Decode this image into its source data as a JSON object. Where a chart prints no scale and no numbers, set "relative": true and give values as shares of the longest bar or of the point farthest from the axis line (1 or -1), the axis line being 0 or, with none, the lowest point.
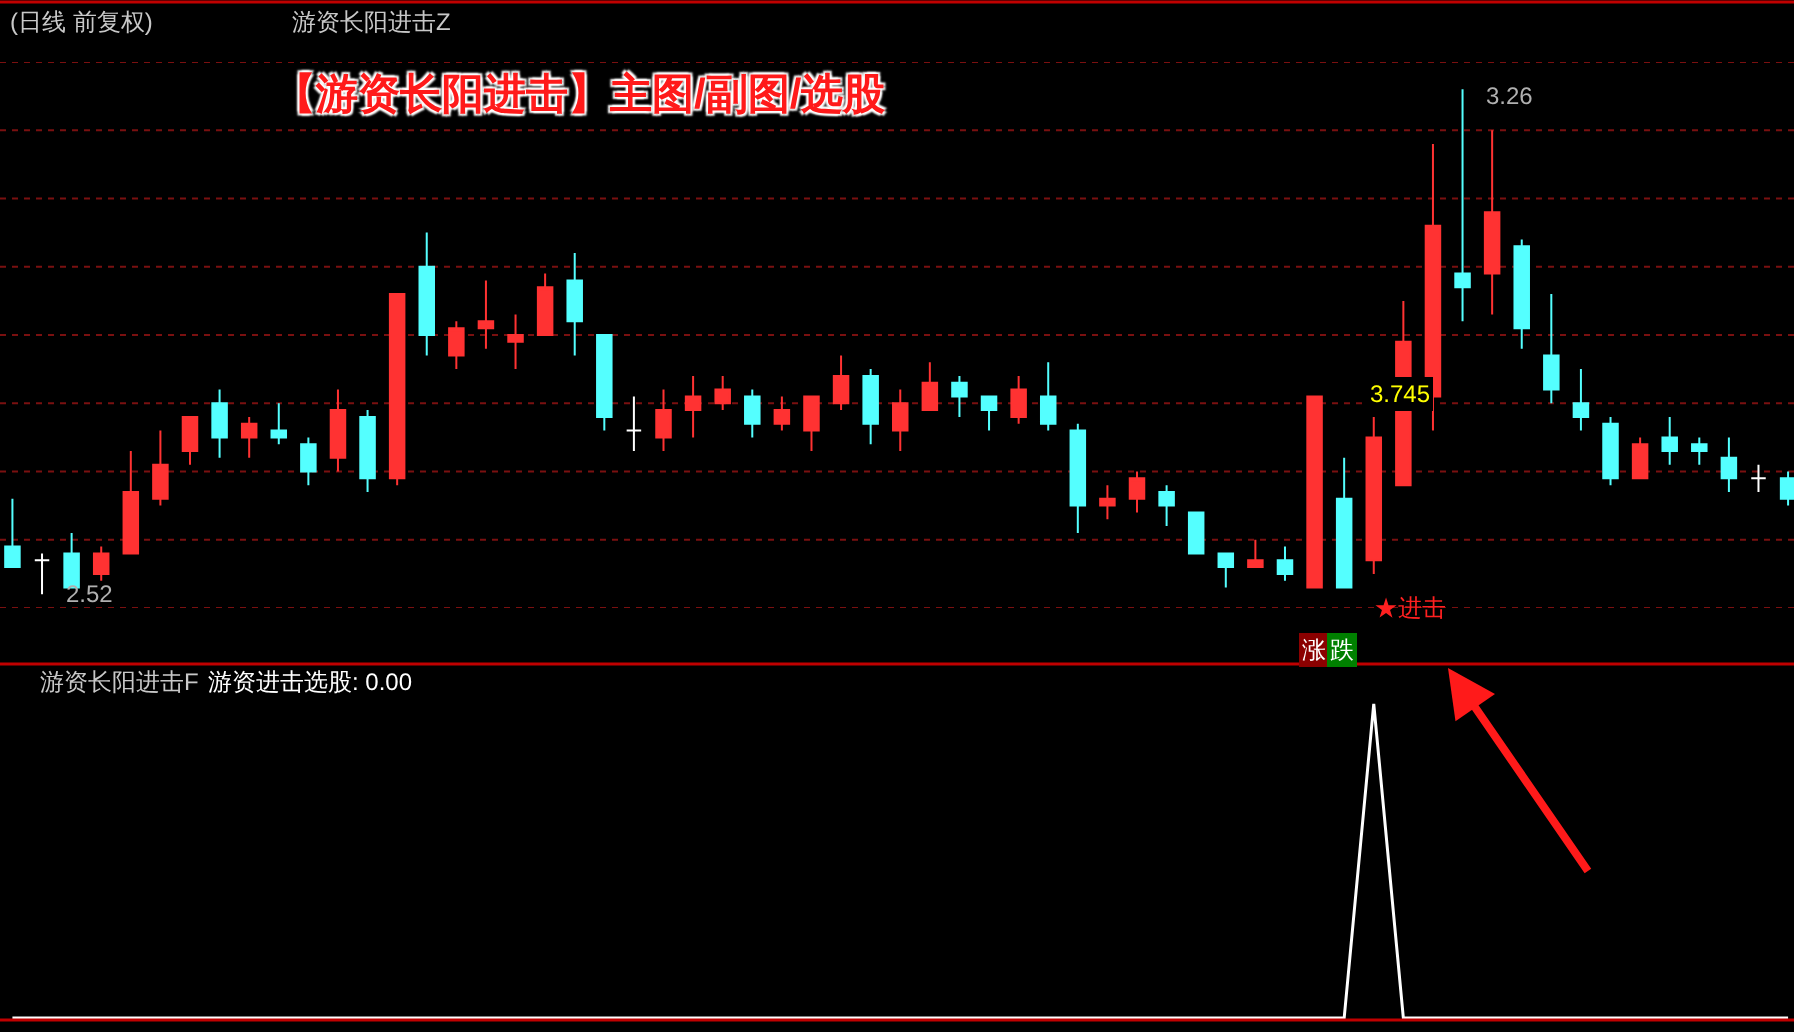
{
  "chart_data": [
    {
      "type": "candlestick",
      "title": "【游资长阳进击】主图/副图/选股",
      "annotations": [
        "(日线 前复权)",
        "游资长阳进击Z",
        "2.52",
        "3.26",
        "3.745",
        "★进击",
        "涨",
        "跌"
      ],
      "categories": [
        null,
        null,
        null,
        null,
        null,
        null,
        null,
        null,
        null,
        null,
        null,
        null,
        null,
        null,
        null,
        null,
        null,
        null,
        null,
        null,
        null,
        null,
        null,
        null,
        null,
        null,
        null,
        null,
        null,
        null,
        null,
        null,
        null,
        null,
        null,
        null,
        null,
        null,
        null,
        null,
        null,
        null,
        null,
        null,
        null,
        null,
        null,
        null,
        null,
        null,
        null,
        null,
        null,
        null,
        null,
        null,
        null,
        null,
        null,
        null,
        null
      ],
      "ohlc": [
        [
          2.59,
          2.66,
          2.56,
          2.56
        ],
        [
          2.57,
          2.58,
          2.52,
          2.57
        ],
        [
          2.58,
          2.61,
          2.53,
          2.53
        ],
        [
          2.55,
          2.59,
          2.54,
          2.58
        ],
        [
          2.58,
          2.73,
          2.58,
          2.67
        ],
        [
          2.66,
          2.76,
          2.65,
          2.71
        ],
        [
          2.73,
          2.78,
          2.71,
          2.78
        ],
        [
          2.8,
          2.82,
          2.72,
          2.75
        ],
        [
          2.75,
          2.78,
          2.72,
          2.77
        ],
        [
          2.76,
          2.8,
          2.74,
          2.75
        ],
        [
          2.74,
          2.75,
          2.68,
          2.7
        ],
        [
          2.72,
          2.82,
          2.7,
          2.79
        ],
        [
          2.78,
          2.79,
          2.67,
          2.69
        ],
        [
          2.69,
          2.96,
          2.68,
          2.96
        ],
        [
          3.0,
          3.05,
          2.87,
          2.9
        ],
        [
          2.87,
          2.92,
          2.85,
          2.91
        ],
        [
          2.91,
          2.98,
          2.88,
          2.92
        ],
        [
          2.89,
          2.93,
          2.85,
          2.9
        ],
        [
          2.9,
          2.99,
          2.9,
          2.97
        ],
        [
          2.98,
          3.02,
          2.87,
          2.92
        ],
        [
          2.9,
          2.9,
          2.76,
          2.78
        ],
        [
          2.76,
          2.81,
          2.73,
          2.76
        ],
        [
          2.75,
          2.82,
          2.73,
          2.79
        ],
        [
          2.79,
          2.84,
          2.75,
          2.81
        ],
        [
          2.8,
          2.84,
          2.79,
          2.82
        ],
        [
          2.81,
          2.82,
          2.75,
          2.77
        ],
        [
          2.77,
          2.81,
          2.76,
          2.79
        ],
        [
          2.76,
          2.81,
          2.73,
          2.81
        ],
        [
          2.8,
          2.87,
          2.79,
          2.84
        ],
        [
          2.84,
          2.85,
          2.74,
          2.77
        ],
        [
          2.76,
          2.82,
          2.73,
          2.8
        ],
        [
          2.79,
          2.86,
          2.79,
          2.83
        ],
        [
          2.83,
          2.84,
          2.78,
          2.81
        ],
        [
          2.81,
          2.81,
          2.76,
          2.79
        ],
        [
          2.78,
          2.84,
          2.77,
          2.82
        ],
        [
          2.81,
          2.86,
          2.76,
          2.77
        ],
        [
          2.76,
          2.77,
          2.61,
          2.65
        ],
        [
          2.65,
          2.68,
          2.63,
          2.66
        ],
        [
          2.66,
          2.7,
          2.64,
          2.69
        ],
        [
          2.67,
          2.68,
          2.62,
          2.65
        ],
        [
          2.64,
          2.64,
          2.58,
          2.58
        ],
        [
          2.58,
          2.58,
          2.53,
          2.56
        ],
        [
          2.56,
          2.6,
          2.56,
          2.57
        ],
        [
          2.57,
          2.59,
          2.54,
          2.55
        ],
        [
          2.53,
          2.81,
          2.53,
          2.81
        ],
        [
          2.66,
          2.72,
          2.53,
          2.53
        ],
        [
          2.57,
          2.78,
          2.55,
          2.75
        ],
        [
          2.68,
          2.95,
          2.68,
          2.89
        ],
        [
          2.81,
          3.18,
          2.76,
          3.06
        ],
        [
          2.99,
          3.26,
          2.92,
          2.97
        ],
        [
          2.99,
          3.2,
          2.93,
          3.08
        ],
        [
          3.03,
          3.04,
          2.88,
          2.91
        ],
        [
          2.87,
          2.96,
          2.8,
          2.82
        ],
        [
          2.8,
          2.85,
          2.76,
          2.78
        ],
        [
          2.77,
          2.78,
          2.68,
          2.69
        ],
        [
          2.69,
          2.75,
          2.69,
          2.74
        ],
        [
          2.75,
          2.78,
          2.71,
          2.73
        ],
        [
          2.74,
          2.75,
          2.71,
          2.73
        ],
        [
          2.72,
          2.75,
          2.67,
          2.69
        ],
        [
          2.69,
          2.71,
          2.67,
          2.69
        ],
        [
          2.69,
          2.7,
          2.65,
          2.66
        ]
      ],
      "colors": [
        "#54ffff",
        "#ffffff",
        "#54ffff",
        "#ff3232",
        "#ff3232",
        "#ff3232",
        "#ff3232",
        "#54ffff",
        "#ff3232",
        "#54ffff",
        "#54ffff",
        "#ff3232",
        "#54ffff",
        "#ff3232",
        "#54ffff",
        "#ff3232",
        "#ff3232",
        "#ff3232",
        "#ff3232",
        "#54ffff",
        "#54ffff",
        "#ffffff",
        "#ff3232",
        "#ff3232",
        "#ff3232",
        "#54ffff",
        "#ff3232",
        "#ff3232",
        "#ff3232",
        "#54ffff",
        "#ff3232",
        "#ff3232",
        "#54ffff",
        "#54ffff",
        "#ff3232",
        "#54ffff",
        "#54ffff",
        "#ff3232",
        "#ff3232",
        "#54ffff",
        "#54ffff",
        "#54ffff",
        "#ff3232",
        "#54ffff",
        "#ff3232",
        "#54ffff",
        "#ff3232",
        "#ff3232",
        "#ff3232",
        "#54ffff",
        "#ff3232",
        "#54ffff",
        "#54ffff",
        "#54ffff",
        "#54ffff",
        "#ff3232",
        "#54ffff",
        "#54ffff",
        "#54ffff",
        "#ffffff",
        "#54ffff"
      ],
      "ylim": [
        2.5,
        3.3
      ],
      "yticks": [
        {
          "value": 2.5,
          "label": null
        },
        {
          "value": 2.6,
          "label": null
        },
        {
          "value": 2.7,
          "label": null
        },
        {
          "value": 2.8,
          "label": null
        },
        {
          "value": 2.9,
          "label": null
        },
        {
          "value": 3.0,
          "label": null
        },
        {
          "value": 3.1,
          "label": null
        },
        {
          "value": 3.2,
          "label": null
        },
        {
          "value": 3.3,
          "label": null
        }
      ],
      "grid": "y",
      "tick_labels": false
    },
    {
      "type": "line",
      "title": "游资长阳进击F",
      "annotations": [
        "游资进击选股: 0.00"
      ],
      "relative": true,
      "tick_labels": false,
      "categories": [
        null,
        null,
        null,
        null,
        null,
        null,
        null,
        null,
        null,
        null,
        null,
        null,
        null,
        null,
        null,
        null,
        null,
        null,
        null,
        null,
        null,
        null,
        null,
        null,
        null,
        null,
        null,
        null,
        null,
        null,
        null,
        null,
        null,
        null,
        null,
        null,
        null,
        null,
        null,
        null,
        null,
        null,
        null,
        null,
        null,
        null,
        null,
        null,
        null,
        null,
        null,
        null,
        null,
        null,
        null,
        null,
        null,
        null,
        null,
        null,
        null
      ],
      "series": [
        {
          "color": "#ffffff",
          "values": [
            0,
            0,
            0,
            0,
            0,
            0,
            0,
            0,
            0,
            0,
            0,
            0,
            0,
            0,
            0,
            0,
            0,
            0,
            0,
            0,
            0,
            0,
            0,
            0,
            0,
            0,
            0,
            0,
            0,
            0,
            0,
            0,
            0,
            0,
            0,
            0,
            0,
            0,
            0,
            0,
            0,
            0,
            0,
            0,
            0,
            0,
            1,
            0,
            0,
            0,
            0,
            0,
            0,
            0,
            0,
            0,
            0,
            0,
            0,
            0,
            0
          ]
        }
      ]
    }
  ]
}
